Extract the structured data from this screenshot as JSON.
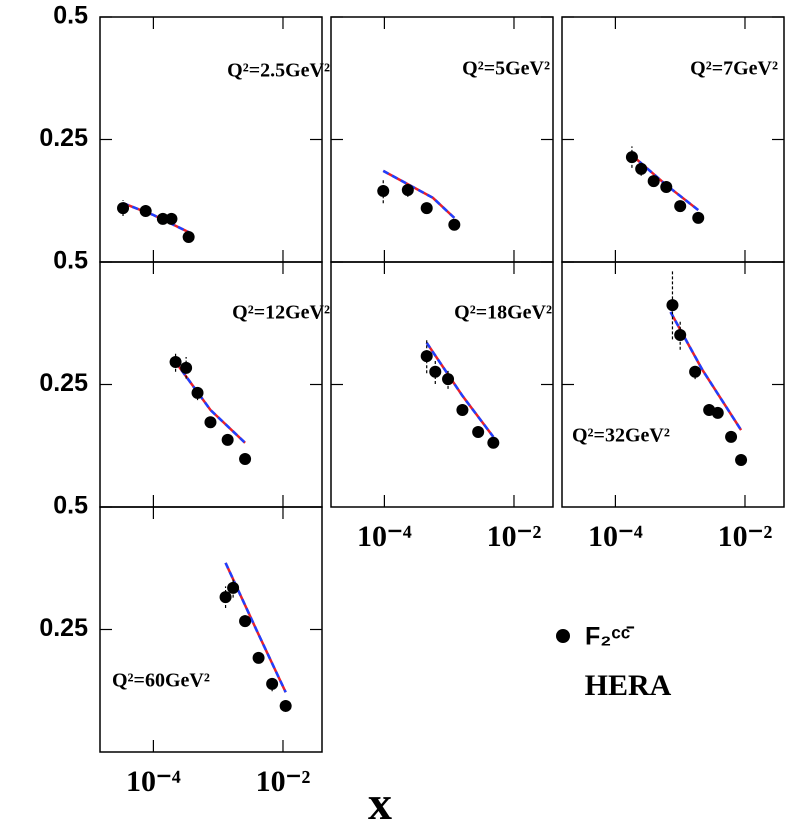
{
  "chart_data": {
    "type": "scatter",
    "xlabel": "x",
    "log_x": true,
    "xlim": [
      1.5e-05,
      0.04
    ],
    "ylim": [
      0,
      0.5
    ],
    "xticks": [
      {
        "value": 0.0001,
        "label": "10⁻⁴"
      },
      {
        "value": 0.01,
        "label": "10⁻²"
      }
    ],
    "yticks": [
      0.25,
      0.5
    ],
    "legend": {
      "name": "F₂ᶜᶜ̄",
      "color": "#000000"
    },
    "annotation": "HERA",
    "fit_styles": [
      {
        "color": "#e8202a",
        "dashed": false
      },
      {
        "color": "#1f3fff",
        "dashed": true
      }
    ],
    "panels": [
      {
        "label": "Q²=2.5GeV²",
        "x": [
          3.4e-05,
          7.6e-05,
          0.00014,
          0.00019,
          0.00035
        ],
        "values": [
          0.11,
          0.104,
          0.088,
          0.088,
          0.051
        ],
        "errors": [
          0.016,
          0.012,
          0.01,
          0.01,
          0.008
        ],
        "fits": [
          {
            "x": [
              3.4e-05,
              0.0001,
              0.00035
            ],
            "values": [
              0.12,
              0.096,
              0.061
            ]
          },
          {
            "x": [
              3.4e-05,
              0.0001,
              0.00035
            ],
            "values": [
              0.12,
              0.096,
              0.061
            ]
          }
        ]
      },
      {
        "label": "Q²=5GeV²",
        "x": [
          9.6e-05,
          0.00023,
          0.00045,
          0.0012
        ],
        "values": [
          0.145,
          0.147,
          0.11,
          0.076
        ],
        "errors": [
          0.025,
          0.014,
          0.01,
          0.008
        ],
        "fits": [
          {
            "x": [
              9.6e-05,
              0.00056,
              0.0012
            ],
            "values": [
              0.186,
              0.131,
              0.09
            ]
          },
          {
            "x": [
              9.6e-05,
              0.00056,
              0.0012
            ],
            "values": [
              0.186,
              0.131,
              0.09
            ]
          }
        ]
      },
      {
        "label": "Q²=7GeV²",
        "x": [
          0.00018,
          0.00025,
          0.00039,
          0.00061,
          0.001,
          0.0019
        ],
        "values": [
          0.214,
          0.19,
          0.165,
          0.153,
          0.114,
          0.09
        ],
        "errors": [
          0.022,
          0.014,
          0.01,
          0.01,
          0.008,
          0.006
        ],
        "fits": [
          {
            "x": [
              0.00018,
              0.00061,
              0.0019
            ],
            "values": [
              0.218,
              0.157,
              0.106
            ]
          },
          {
            "x": [
              0.00018,
              0.00061,
              0.0019
            ],
            "values": [
              0.218,
              0.157,
              0.106
            ]
          }
        ]
      },
      {
        "label": "Q²=12GeV²",
        "x": [
          0.00022,
          0.00032,
          0.00048,
          0.00076,
          0.0014,
          0.0026
        ],
        "values": [
          0.296,
          0.284,
          0.233,
          0.173,
          0.137,
          0.098
        ],
        "errors": [
          0.02,
          0.022,
          0.015,
          0.008,
          0.008,
          0.006
        ],
        "fits": [
          {
            "x": [
              0.00022,
              0.00076,
              0.0026
            ],
            "values": [
              0.296,
              0.198,
              0.131
            ]
          },
          {
            "x": [
              0.00022,
              0.00076,
              0.0026
            ],
            "values": [
              0.296,
              0.198,
              0.131
            ]
          }
        ]
      },
      {
        "label": "Q²=18GeV²",
        "x": [
          0.00045,
          0.00061,
          0.00096,
          0.0016,
          0.0028,
          0.0048
        ],
        "values": [
          0.308,
          0.276,
          0.261,
          0.198,
          0.153,
          0.131
        ],
        "errors": [
          0.035,
          0.025,
          0.02,
          0.01,
          0.008,
          0.008
        ],
        "fits": [
          {
            "x": [
              0.00045,
              0.0016,
              0.0048
            ],
            "values": [
              0.335,
              0.227,
              0.143
            ]
          },
          {
            "x": [
              0.00045,
              0.0016,
              0.0048
            ],
            "values": [
              0.335,
              0.227,
              0.143
            ]
          }
        ]
      },
      {
        "label": "Q²=32GeV²",
        "x": [
          0.00076,
          0.001,
          0.0017,
          0.0028,
          0.0038,
          0.0061,
          0.0087
        ],
        "values": [
          0.412,
          0.351,
          0.276,
          0.198,
          0.192,
          0.143,
          0.096
        ],
        "errors": [
          0.07,
          0.03,
          0.015,
          0.012,
          0.01,
          0.01,
          0.01
        ],
        "fits": [
          {
            "x": [
              0.00071,
              0.0022,
              0.0087
            ],
            "values": [
              0.398,
              0.28,
              0.157
            ]
          },
          {
            "x": [
              0.00071,
              0.0022,
              0.0087
            ],
            "values": [
              0.398,
              0.28,
              0.157
            ]
          }
        ]
      },
      {
        "label": "Q²=60GeV²",
        "x": [
          0.0013,
          0.0017,
          0.0026,
          0.0042,
          0.0068,
          0.011
        ],
        "values": [
          0.316,
          0.335,
          0.267,
          0.192,
          0.139,
          0.094
        ],
        "errors": [
          0.022,
          0.02,
          0.012,
          0.01,
          0.015,
          0.008
        ],
        "fits": [
          {
            "x": [
              0.0013,
              0.0039,
              0.011
            ],
            "values": [
              0.386,
              0.249,
              0.122
            ]
          },
          {
            "x": [
              0.0013,
              0.0039,
              0.011
            ],
            "values": [
              0.386,
              0.249,
              0.122
            ]
          }
        ]
      }
    ]
  }
}
